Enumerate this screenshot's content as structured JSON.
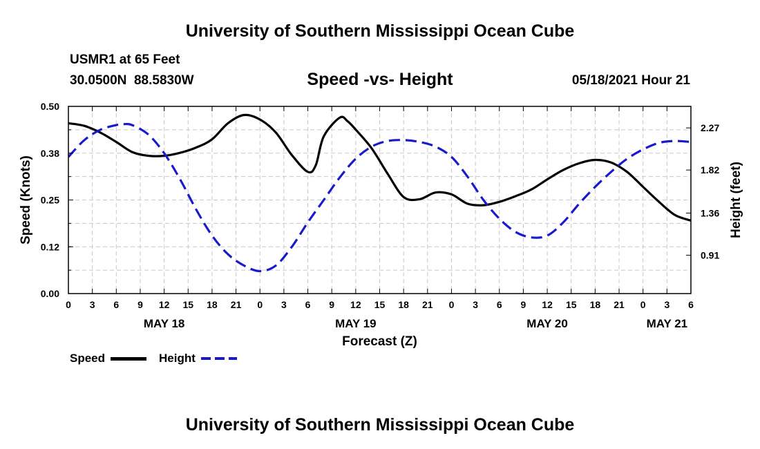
{
  "page": {
    "title_top": "University of Southern Mississippi Ocean Cube",
    "title_bottom": "University of Southern Mississippi Ocean Cube",
    "station": "USMR1 at 65 Feet",
    "coords": "30.0500N  88.5830W",
    "chart_title": "Speed -vs- Height",
    "datetime": "05/18/2021 Hour 21"
  },
  "legend": {
    "speed_label": "Speed",
    "height_label": "Height"
  },
  "colors": {
    "speed": "#000000",
    "height": "#1a1acd",
    "grid": "#c8c8c8"
  },
  "chart_data": {
    "type": "line",
    "title": "Speed -vs- Height",
    "xlabel": "Forecast (Z)",
    "ylabel": "Speed (Knots)",
    "y2label": "Height (feet)",
    "x_unit": "hours since May 18 00Z",
    "xlim": [
      0,
      78
    ],
    "ylim": [
      0,
      0.5
    ],
    "y2lim": [
      0.5,
      2.5
    ],
    "grid": true,
    "x_ticks": [
      {
        "x": 0,
        "label": "0"
      },
      {
        "x": 3,
        "label": "3"
      },
      {
        "x": 6,
        "label": "6"
      },
      {
        "x": 9,
        "label": "9"
      },
      {
        "x": 12,
        "label": "12"
      },
      {
        "x": 15,
        "label": "15"
      },
      {
        "x": 18,
        "label": "18"
      },
      {
        "x": 21,
        "label": "21"
      },
      {
        "x": 24,
        "label": "0"
      },
      {
        "x": 27,
        "label": "3"
      },
      {
        "x": 30,
        "label": "6"
      },
      {
        "x": 33,
        "label": "9"
      },
      {
        "x": 36,
        "label": "12"
      },
      {
        "x": 39,
        "label": "15"
      },
      {
        "x": 42,
        "label": "18"
      },
      {
        "x": 45,
        "label": "21"
      },
      {
        "x": 48,
        "label": "0"
      },
      {
        "x": 51,
        "label": "3"
      },
      {
        "x": 54,
        "label": "6"
      },
      {
        "x": 57,
        "label": "9"
      },
      {
        "x": 60,
        "label": "12"
      },
      {
        "x": 63,
        "label": "15"
      },
      {
        "x": 66,
        "label": "18"
      },
      {
        "x": 69,
        "label": "21"
      },
      {
        "x": 72,
        "label": "0"
      },
      {
        "x": 75,
        "label": "3"
      },
      {
        "x": 78,
        "label": "6"
      }
    ],
    "date_labels": [
      {
        "x": 12,
        "label": "MAY 18"
      },
      {
        "x": 36,
        "label": "MAY 19"
      },
      {
        "x": 60,
        "label": "MAY 20"
      },
      {
        "x": 75,
        "label": "MAY 21"
      }
    ],
    "y_ticks": [
      {
        "v": 0.0,
        "label": "0.00"
      },
      {
        "v": 0.125,
        "label": "0.12"
      },
      {
        "v": 0.25,
        "label": "0.25"
      },
      {
        "v": 0.375,
        "label": "0.38"
      },
      {
        "v": 0.5,
        "label": "0.50"
      }
    ],
    "y2_ticks": [
      {
        "v": 0.91,
        "label": "0.91"
      },
      {
        "v": 1.36,
        "label": "1.36"
      },
      {
        "v": 1.82,
        "label": "1.82"
      },
      {
        "v": 2.27,
        "label": "2.27"
      }
    ],
    "series": [
      {
        "name": "Speed",
        "axis": "left",
        "style": "solid",
        "x": [
          0,
          2,
          4,
          6,
          8,
          10,
          12,
          14,
          16,
          18,
          20,
          22,
          24,
          26,
          28,
          30,
          31,
          32,
          34,
          35,
          36,
          38,
          40,
          42,
          44,
          46,
          48,
          50,
          52,
          54,
          56,
          58,
          60,
          62,
          64,
          66,
          68,
          70,
          72,
          74,
          76,
          78
        ],
        "values": [
          0.455,
          0.448,
          0.43,
          0.405,
          0.378,
          0.368,
          0.368,
          0.376,
          0.39,
          0.412,
          0.455,
          0.477,
          0.465,
          0.43,
          0.37,
          0.325,
          0.343,
          0.42,
          0.47,
          0.46,
          0.438,
          0.388,
          0.32,
          0.258,
          0.252,
          0.27,
          0.265,
          0.24,
          0.236,
          0.245,
          0.26,
          0.278,
          0.305,
          0.33,
          0.348,
          0.357,
          0.35,
          0.325,
          0.285,
          0.245,
          0.21,
          0.195
        ]
      },
      {
        "name": "Height",
        "axis": "right",
        "style": "dashed",
        "x": [
          0,
          2,
          4,
          6,
          7,
          8,
          10,
          12,
          14,
          16,
          18,
          20,
          22,
          24,
          26,
          28,
          30,
          32,
          34,
          36,
          38,
          40,
          42,
          44,
          46,
          48,
          50,
          52,
          54,
          56,
          58,
          60,
          62,
          64,
          66,
          68,
          70,
          72,
          74,
          76,
          78
        ],
        "values": [
          1.96,
          2.14,
          2.25,
          2.3,
          2.31,
          2.3,
          2.2,
          2.0,
          1.72,
          1.4,
          1.12,
          0.92,
          0.8,
          0.74,
          0.8,
          1.0,
          1.26,
          1.5,
          1.74,
          1.94,
          2.07,
          2.13,
          2.14,
          2.12,
          2.07,
          1.96,
          1.75,
          1.5,
          1.3,
          1.16,
          1.1,
          1.12,
          1.26,
          1.46,
          1.64,
          1.8,
          1.94,
          2.04,
          2.11,
          2.13,
          2.12
        ]
      }
    ]
  }
}
